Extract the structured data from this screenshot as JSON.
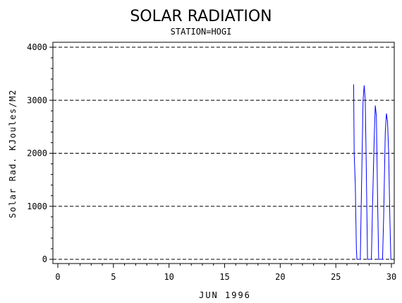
{
  "chart_data": {
    "type": "line",
    "title": "SOLAR RADIATION",
    "subtitle": "STATION=HOGI",
    "xlabel": "JUN 1996",
    "ylabel": "Solar Rad. KJoules/M2",
    "xlim": [
      0,
      30
    ],
    "ylim": [
      0,
      4000
    ],
    "x_ticks": [
      0,
      5,
      10,
      15,
      20,
      25,
      30
    ],
    "y_ticks": [
      0,
      1000,
      2000,
      3000,
      4000
    ],
    "grid": "horizontal dashed at major y ticks",
    "line_color": "#0000ff",
    "series": [
      {
        "values": [
          [
            26.6,
            3300
          ],
          [
            26.65,
            2000
          ],
          [
            26.75,
            1400
          ],
          [
            26.85,
            200
          ],
          [
            26.9,
            0
          ],
          [
            27.2,
            0
          ],
          [
            27.3,
            1200
          ],
          [
            27.45,
            3000
          ],
          [
            27.55,
            3280
          ],
          [
            27.65,
            3000
          ],
          [
            27.75,
            1600
          ],
          [
            27.85,
            0
          ],
          [
            28.2,
            0
          ],
          [
            28.3,
            1000
          ],
          [
            28.45,
            2300
          ],
          [
            28.55,
            2900
          ],
          [
            28.65,
            2700
          ],
          [
            28.75,
            1200
          ],
          [
            28.85,
            0
          ],
          [
            29.2,
            0
          ],
          [
            29.3,
            800
          ],
          [
            29.45,
            2400
          ],
          [
            29.55,
            2750
          ],
          [
            29.65,
            2600
          ],
          [
            29.75,
            2000
          ],
          [
            29.85,
            900
          ],
          [
            29.95,
            0
          ],
          [
            30,
            0
          ]
        ]
      }
    ]
  }
}
